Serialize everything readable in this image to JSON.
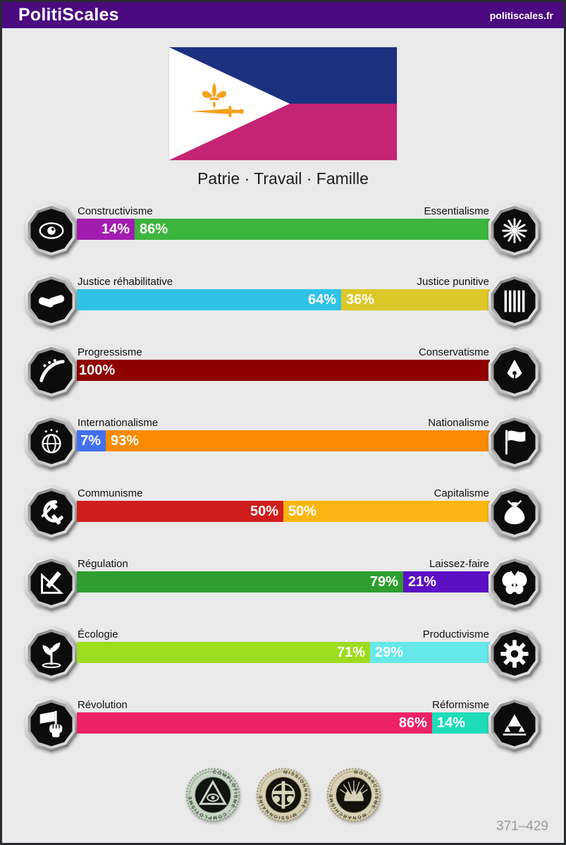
{
  "header": {
    "title": "PolitiScales",
    "site": "politiscales.fr"
  },
  "theme": {
    "header_bg": "#4b0a80",
    "page_bg": "#eaeaea",
    "border": "#2a2a31"
  },
  "flag": {
    "motto": "Patrie · Travail · Famille",
    "colors": {
      "top": "#1b3180",
      "bottom": "#c52373",
      "triangle": "#ffffff",
      "emblem": "#f5a11d"
    }
  },
  "chart_data": {
    "type": "bar",
    "title": "PolitiScales results",
    "axes": "paired horizontal percentage bars, each pair sums to 100",
    "series": [
      {
        "left": "Constructivisme",
        "left_pct": 14,
        "right": "Essentialisme",
        "right_pct": 86
      },
      {
        "left": "Justice réhabilitative",
        "left_pct": 64,
        "right": "Justice punitive",
        "right_pct": 36
      },
      {
        "left": "Progressisme",
        "left_pct": 100,
        "right": "Conservatisme",
        "right_pct": 0
      },
      {
        "left": "Internationalisme",
        "left_pct": 7,
        "right": "Nationalisme",
        "right_pct": 93
      },
      {
        "left": "Communisme",
        "left_pct": 50,
        "right": "Capitalisme",
        "right_pct": 50
      },
      {
        "left": "Régulation",
        "left_pct": 79,
        "right": "Laissez-faire",
        "right_pct": 21
      },
      {
        "left": "Écologie",
        "left_pct": 71,
        "right": "Productivisme",
        "right_pct": 29
      },
      {
        "left": "Révolution",
        "left_pct": 86,
        "right": "Réformisme",
        "right_pct": 14
      }
    ]
  },
  "axes": [
    {
      "left_label": "Constructivisme",
      "right_label": "Essentialisme",
      "left_value": 14,
      "right_value": 86,
      "left_color": "#a21cb0",
      "right_color": "#3cb53c",
      "left_icon": "constructivism-icon",
      "right_icon": "essentialism-icon"
    },
    {
      "left_label": "Justice réhabilitative",
      "right_label": "Justice punitive",
      "left_value": 64,
      "right_value": 36,
      "left_color": "#2ec3e6",
      "right_color": "#ddc829",
      "left_icon": "rehabilitative-justice-icon",
      "right_icon": "punitive-justice-icon"
    },
    {
      "left_label": "Progressisme",
      "right_label": "Conservatisme",
      "left_value": 100,
      "right_value": 0,
      "left_color": "#8f0000",
      "right_color": "#8f0000",
      "left_icon": "progressivism-icon",
      "right_icon": "conservatism-icon"
    },
    {
      "left_label": "Internationalisme",
      "right_label": "Nationalisme",
      "left_value": 7,
      "right_value": 93,
      "left_color": "#4370f2",
      "right_color": "#f98b00",
      "left_icon": "internationalism-icon",
      "right_icon": "nationalism-icon"
    },
    {
      "left_label": "Communisme",
      "right_label": "Capitalisme",
      "left_value": 50,
      "right_value": 50,
      "left_color": "#d01d1d",
      "right_color": "#fcb614",
      "left_icon": "communism-icon",
      "right_icon": "capitalism-icon"
    },
    {
      "left_label": "Régulation",
      "right_label": "Laissez-faire",
      "left_value": 79,
      "right_value": 21,
      "left_color": "#2f9e2f",
      "right_color": "#5c10c4",
      "left_icon": "regulation-icon",
      "right_icon": "laissez-faire-icon"
    },
    {
      "left_label": "Écologie",
      "right_label": "Productivisme",
      "left_value": 71,
      "right_value": 29,
      "left_color": "#9edc20",
      "right_color": "#67e8e8",
      "left_icon": "ecology-icon",
      "right_icon": "productivism-icon"
    },
    {
      "left_label": "Révolution",
      "right_label": "Réformisme",
      "left_value": 86,
      "right_value": 14,
      "left_color": "#ee2266",
      "right_color": "#1fdcb9",
      "left_icon": "revolution-icon",
      "right_icon": "reformism-icon"
    }
  ],
  "badges": [
    {
      "label": "COMPLOTISME",
      "name": "complotisme-badge",
      "style": "green"
    },
    {
      "label": "MISSIONNAIRE",
      "name": "missionnaire-badge",
      "style": "tan"
    },
    {
      "label": "MONARCHISME",
      "name": "monarchisme-badge",
      "style": "tan"
    }
  ],
  "footer": {
    "code": "371–429"
  }
}
